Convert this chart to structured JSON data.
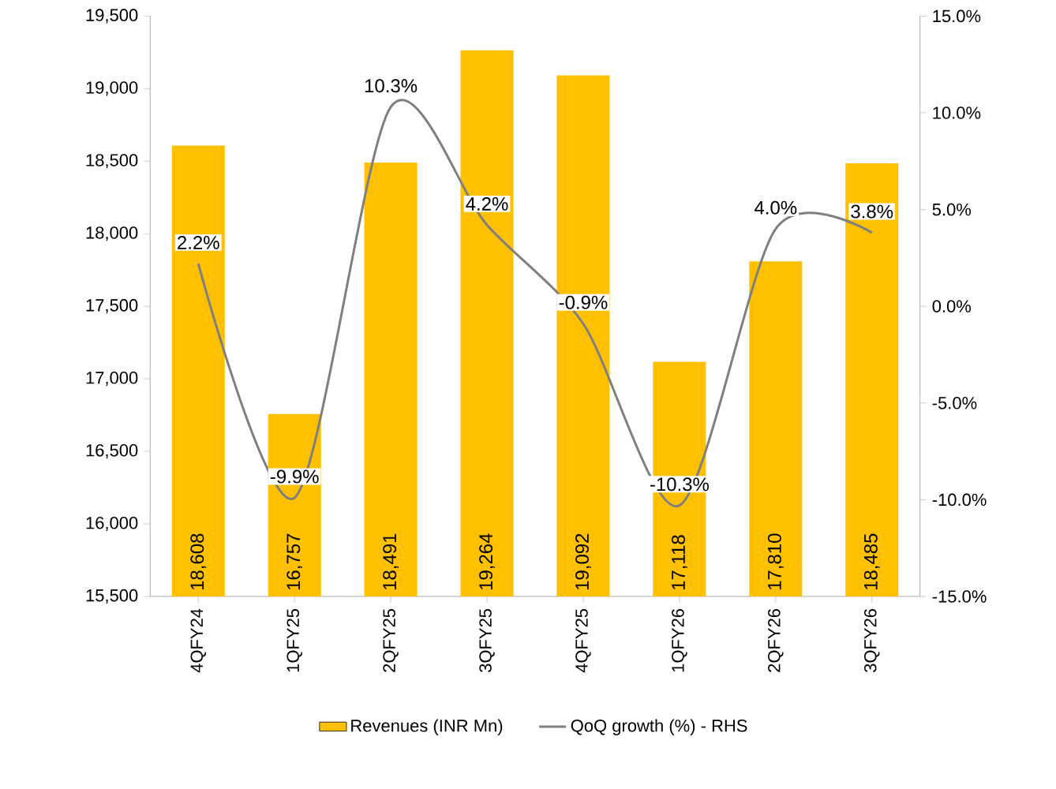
{
  "chart_data": {
    "type": "bar",
    "categories": [
      "4QFY24",
      "1QFY25",
      "2QFY25",
      "3QFY25",
      "4QFY25",
      "1QFY26",
      "2QFY26",
      "3QFY26"
    ],
    "series": [
      {
        "name": "Revenues (INR Mn)",
        "color": "#ffc000",
        "values": [
          18608,
          16757,
          18491,
          19264,
          19092,
          17118,
          17810,
          18485
        ],
        "value_labels": [
          "18,608",
          "16,757",
          "18,491",
          "19,264",
          "19,092",
          "17,118",
          "17,810",
          "18,485"
        ]
      },
      {
        "name": "QoQ growth (%) - RHS",
        "type": "line",
        "axis": "y2",
        "color": "#7f7f7f",
        "values": [
          2.2,
          -9.9,
          10.3,
          4.2,
          -0.9,
          -10.3,
          4.0,
          3.8
        ],
        "value_labels": [
          "2.2%",
          "-9.9%",
          "10.3%",
          "4.2%",
          "-0.9%",
          "-10.3%",
          "4.0%",
          "3.8%"
        ]
      }
    ],
    "ylim": [
      15500,
      19500
    ],
    "yticks": [
      {
        "value": 15500,
        "label": "15,500"
      },
      {
        "value": 16000,
        "label": "16,000"
      },
      {
        "value": 16500,
        "label": "16,500"
      },
      {
        "value": 17000,
        "label": "17,000"
      },
      {
        "value": 17500,
        "label": "17,500"
      },
      {
        "value": 18000,
        "label": "18,000"
      },
      {
        "value": 18500,
        "label": "18,500"
      },
      {
        "value": 19000,
        "label": "19,000"
      },
      {
        "value": 19500,
        "label": "19,500"
      }
    ],
    "y2lim": [
      -15,
      15
    ],
    "y2ticks": [
      {
        "value": -15,
        "label": "-15.0%"
      },
      {
        "value": -10,
        "label": "-10.0%"
      },
      {
        "value": -5,
        "label": "-5.0%"
      },
      {
        "value": 0,
        "label": "0.0%"
      },
      {
        "value": 5,
        "label": "5.0%"
      },
      {
        "value": 10,
        "label": "10.0%"
      },
      {
        "value": 15,
        "label": "15.0%"
      }
    ],
    "legend": "bottom"
  }
}
